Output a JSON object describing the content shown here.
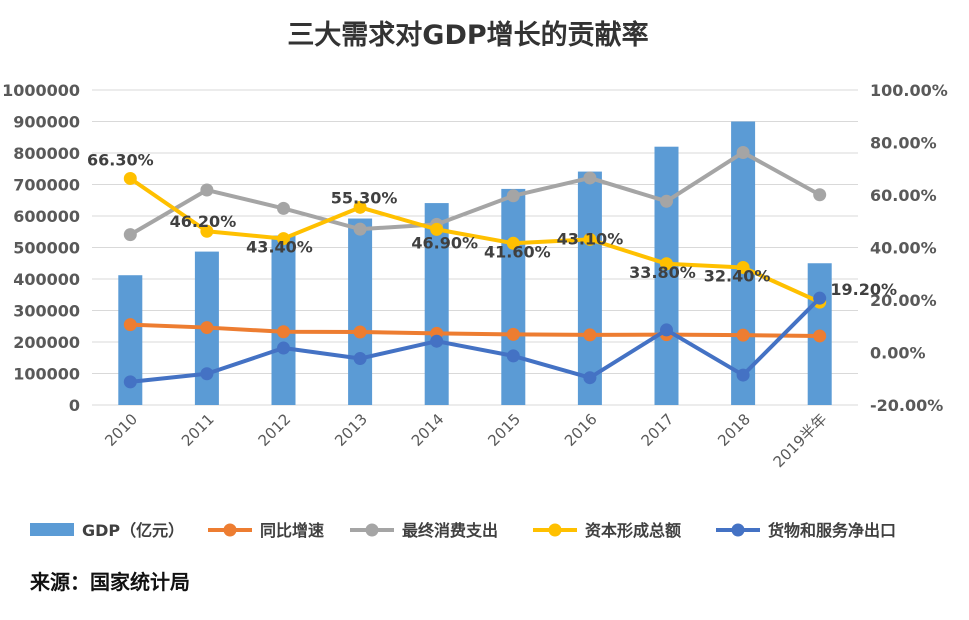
{
  "chart_data": {
    "type": "bar+line",
    "title": "三大需求对GDP增长的贡献率",
    "categories": [
      "2010",
      "2011",
      "2012",
      "2013",
      "2014",
      "2015",
      "2016",
      "2017",
      "2018",
      "2019半年"
    ],
    "y_left": {
      "min": 0,
      "max": 1000000,
      "ticks": [
        "1000000",
        "900000",
        "800000",
        "700000",
        "600000",
        "500000",
        "400000",
        "300000",
        "200000",
        "100000",
        "0"
      ]
    },
    "y_right": {
      "min": -20,
      "max": 100,
      "ticks": [
        "100.00%",
        "80.00%",
        "60.00%",
        "40.00%",
        "20.00%",
        "0.00%",
        "-20.00%"
      ]
    },
    "grid": true,
    "legend_position": "bottom",
    "series": [
      {
        "name": "GDP（亿元）",
        "kind": "bar",
        "axis": "left",
        "color": "#5b9bd5",
        "values": [
          412000,
          487000,
          538000,
          592000,
          641000,
          686000,
          741000,
          820000,
          900000,
          450000
        ]
      },
      {
        "name": "同比增速",
        "kind": "line",
        "axis": "right",
        "color": "#ed7d31",
        "values": [
          10.6,
          9.5,
          7.9,
          7.8,
          7.3,
          6.9,
          6.7,
          6.8,
          6.6,
          6.3
        ]
      },
      {
        "name": "最终消费支出",
        "kind": "line",
        "axis": "right",
        "color": "#a5a5a5",
        "values": [
          44.9,
          61.9,
          54.9,
          47.0,
          48.8,
          59.7,
          66.5,
          57.6,
          76.2,
          60.1
        ]
      },
      {
        "name": "资本形成总额",
        "kind": "line",
        "axis": "right",
        "color": "#ffc000",
        "values": [
          66.3,
          46.2,
          43.4,
          55.3,
          46.9,
          41.6,
          43.1,
          33.8,
          32.4,
          19.2
        ],
        "labels": [
          "66.30%",
          "46.20%",
          "43.40%",
          "55.30%",
          "46.90%",
          "41.60%",
          "43.10%",
          "33.80%",
          "32.40%",
          "19.20%"
        ]
      },
      {
        "name": "货物和服务净出口",
        "kind": "line",
        "axis": "right",
        "color": "#4472c4",
        "values": [
          -11.2,
          -8.1,
          1.7,
          -2.3,
          4.3,
          -1.3,
          -9.6,
          8.6,
          -8.6,
          20.7
        ]
      }
    ]
  },
  "source": "来源：国家统计局"
}
